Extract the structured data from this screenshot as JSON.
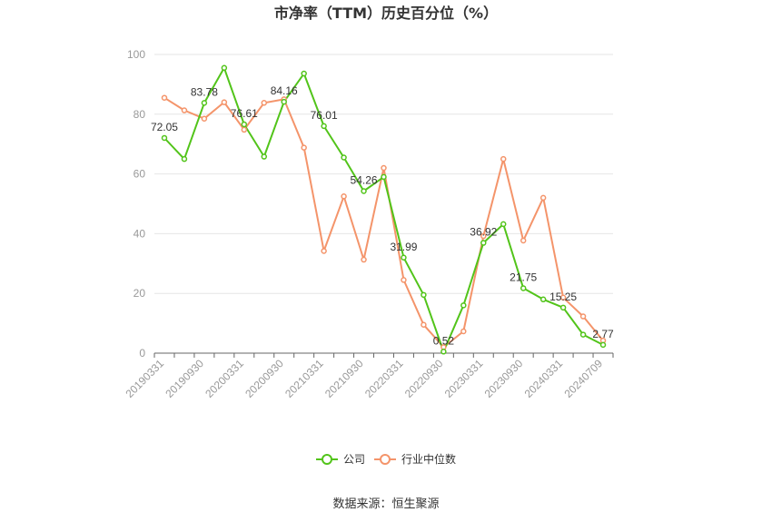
{
  "chart_data": {
    "type": "line",
    "title": "市净率（TTM）历史百分位（%）",
    "ylim": [
      0,
      100
    ],
    "yticks": [
      "0",
      "20",
      "40",
      "60",
      "80",
      "100"
    ],
    "x_labels": [
      "20190331",
      "20190930",
      "20200331",
      "20200930",
      "20210331",
      "20210930",
      "20220331",
      "20220930",
      "20230331",
      "20230930",
      "20240331",
      "20240709"
    ],
    "series": [
      {
        "name": "公司",
        "color": "#52c41a",
        "values": [
          72.05,
          65,
          83.78,
          95.5,
          76.61,
          65.8,
          84.16,
          93.6,
          76.01,
          65.5,
          54.26,
          59,
          31.99,
          19.5,
          0.52,
          16,
          36.92,
          43.2,
          21.75,
          18,
          15.25,
          6.2,
          2.77
        ]
      },
      {
        "name": "行业中位数",
        "color": "#f4946a",
        "values": [
          85.5,
          81.3,
          78.5,
          84,
          74.8,
          83.8,
          85,
          68.8,
          34.2,
          52.5,
          31.3,
          62,
          24.5,
          9.5,
          2,
          7.3,
          39.2,
          65,
          37.7,
          52,
          18.6,
          12.3,
          4.2
        ]
      }
    ],
    "data_labels": [
      {
        "series": 0,
        "index": 0,
        "text": "72.05"
      },
      {
        "series": 0,
        "index": 2,
        "text": "83.78"
      },
      {
        "series": 0,
        "index": 4,
        "text": "76.61"
      },
      {
        "series": 0,
        "index": 6,
        "text": "84.16"
      },
      {
        "series": 0,
        "index": 8,
        "text": "76.01"
      },
      {
        "series": 0,
        "index": 10,
        "text": "54.26"
      },
      {
        "series": 0,
        "index": 12,
        "text": "31.99"
      },
      {
        "series": 0,
        "index": 14,
        "text": "0.52"
      },
      {
        "series": 0,
        "index": 16,
        "text": "36.92"
      },
      {
        "series": 0,
        "index": 18,
        "text": "21.75"
      },
      {
        "series": 0,
        "index": 20,
        "text": "15.25"
      },
      {
        "series": 0,
        "index": 22,
        "text": "2.77"
      }
    ],
    "legend_position": "bottom-center",
    "grid": "horizontal"
  },
  "source_text": "数据来源：恒生聚源"
}
